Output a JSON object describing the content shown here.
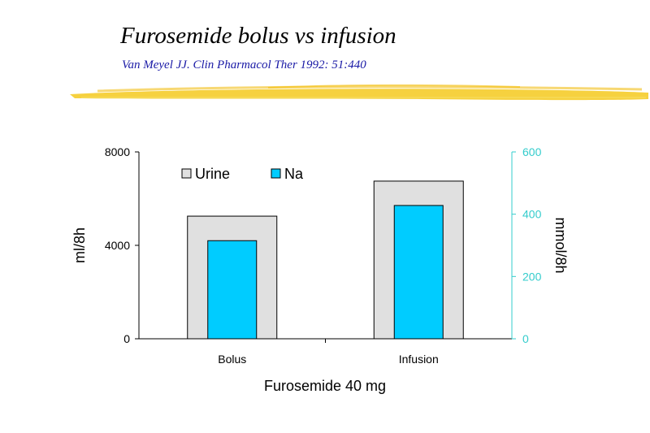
{
  "slide": {
    "title": "Furosemide bolus vs infusion",
    "subtitle": "Van Meyel  JJ. Clin Pharmacol Ther  1992: 51:440"
  },
  "colors": {
    "accent_stroke": "#f2c21a",
    "urine_fill": "#e0e0e0",
    "na_fill": "#00ccff",
    "right_axis": "#33cccc",
    "left_axis": "#000000"
  },
  "chart_data": {
    "type": "bar",
    "categories": [
      "Bolus",
      "Infusion"
    ],
    "xlabel": "Furosemide 40 mg",
    "ylabel": "ml/8h",
    "y2label": "mmol/8h",
    "ylim": [
      0,
      8000
    ],
    "y2lim": [
      0,
      600
    ],
    "yticks": [
      0,
      4000,
      8000
    ],
    "y2ticks": [
      0,
      200,
      400,
      600
    ],
    "legend_position": "top-left",
    "grid": false,
    "series": [
      {
        "name": "Urine",
        "axis": "left",
        "values": [
          5250,
          6750
        ]
      },
      {
        "name": "Na",
        "axis": "right",
        "values": [
          315,
          428
        ]
      }
    ]
  }
}
